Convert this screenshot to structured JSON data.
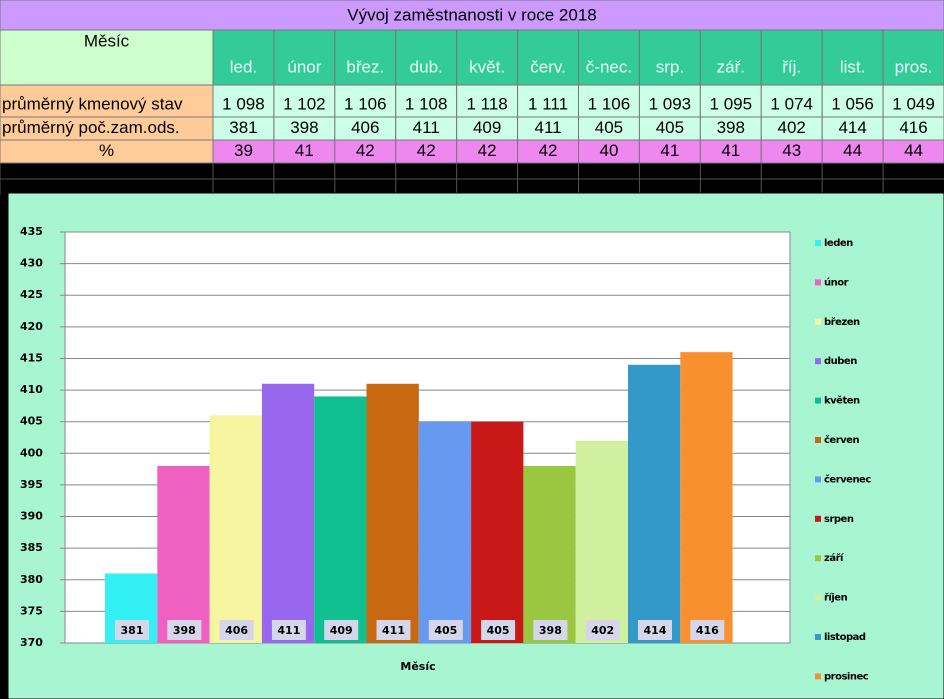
{
  "table": {
    "title": "Vývoj zaměstnanosti v roce 2018",
    "header": [
      "Měsíc",
      "led.",
      "únor",
      "břez.",
      "dub.",
      "květ.",
      "červ.",
      "č-nec.",
      "srp.",
      "zář.",
      "říj.",
      "list.",
      "pros."
    ],
    "rows": [
      [
        "průměrný kmenový stav",
        "1 098",
        "1 102",
        "1 106",
        "1 108",
        "1 118",
        "1 111",
        "1 106",
        "1 093",
        "1 095",
        "1 074",
        "1 056",
        "1 049"
      ],
      [
        "průměrný poč.zam.ods.",
        "381",
        "398",
        "406",
        "411",
        "409",
        "411",
        "405",
        "405",
        "398",
        "402",
        "414",
        "416"
      ],
      [
        "%",
        "39",
        "41",
        "42",
        "42",
        "42",
        "42",
        "40",
        "41",
        "41",
        "43",
        "44",
        "44"
      ]
    ]
  },
  "chart_data": {
    "type": "bar",
    "x_label": "Měsíc",
    "ylim": [
      370,
      435
    ],
    "yticks": [
      370,
      375,
      380,
      385,
      390,
      395,
      400,
      405,
      410,
      415,
      420,
      425,
      430,
      435
    ],
    "grid": true,
    "series": [
      {
        "name": "leden",
        "color": "#33f0f5",
        "values": [
          381
        ]
      },
      {
        "name": "únor",
        "color": "#f060c0",
        "values": [
          398
        ]
      },
      {
        "name": "březen",
        "color": "#f8f5a0",
        "values": [
          406
        ]
      },
      {
        "name": "duben",
        "color": "#9966ee",
        "values": [
          411
        ]
      },
      {
        "name": "květen",
        "color": "#10c090",
        "values": [
          409
        ]
      },
      {
        "name": "červen",
        "color": "#c86810",
        "values": [
          411
        ]
      },
      {
        "name": "červenec",
        "color": "#6699f0",
        "values": [
          405
        ]
      },
      {
        "name": "srpen",
        "color": "#c81818",
        "values": [
          405
        ]
      },
      {
        "name": "září",
        "color": "#99c840",
        "values": [
          398
        ]
      },
      {
        "name": "říjen",
        "color": "#d0f0a0",
        "values": [
          402
        ]
      },
      {
        "name": "listopad",
        "color": "#3399c8",
        "values": [
          414
        ]
      },
      {
        "name": "prosinec",
        "color": "#f89030",
        "values": [
          416
        ]
      }
    ]
  }
}
